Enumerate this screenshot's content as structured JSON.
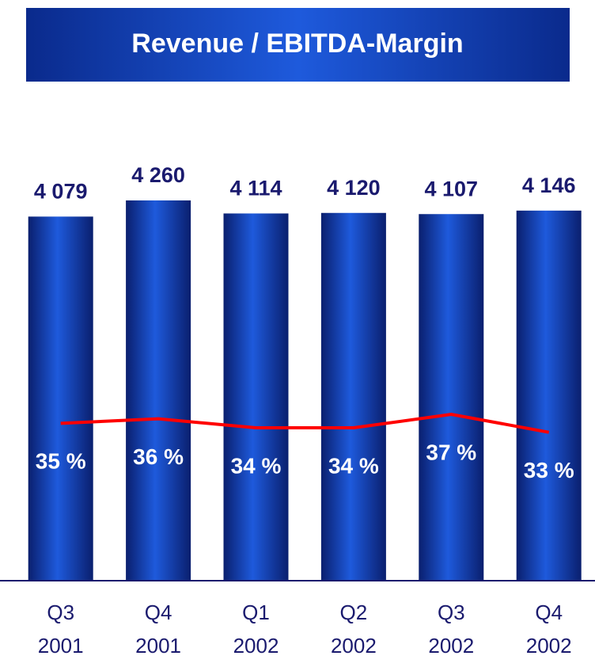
{
  "chart_data": {
    "type": "bar-line",
    "title": "Revenue / EBITDA-Margin",
    "categories": [
      "Q3 2001",
      "Q4 2001",
      "Q1 2002",
      "Q2 2002",
      "Q3 2002",
      "Q4 2002"
    ],
    "series": [
      {
        "name": "Revenue",
        "color": "#1e5adc",
        "values": [
          4079,
          4260,
          4114,
          4120,
          4107,
          4146
        ],
        "value_labels": [
          "4 079",
          "4 260",
          "4 114",
          "4 120",
          "4 107",
          "4 146"
        ]
      },
      {
        "name": "EBITDA-Margin",
        "color": "#ff0000",
        "axis": "y2",
        "values": [
          35,
          36,
          34,
          34,
          37,
          33
        ],
        "value_labels": [
          "35 %",
          "36 %",
          "34 %",
          "34 %",
          "37 %",
          "33 %"
        ]
      }
    ]
  }
}
